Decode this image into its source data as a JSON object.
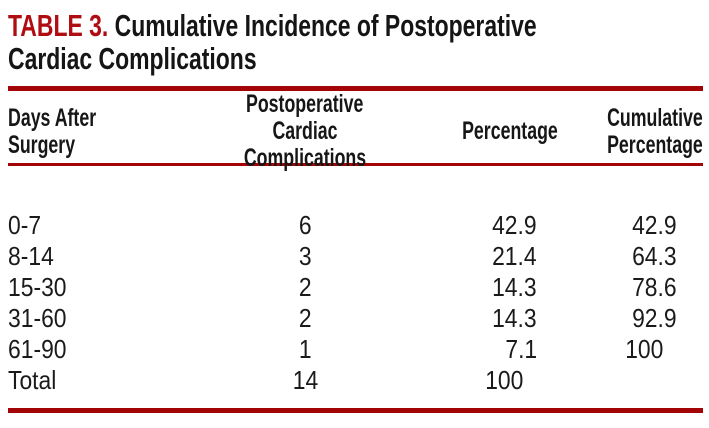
{
  "title": {
    "label": "TABLE 3.",
    "line1": "Cumulative Incidence of Postoperative",
    "line2": "Cardiac Complications"
  },
  "colors": {
    "accent_red_label": "#b00d12",
    "accent_red_rule": "#a30506",
    "text_black": "#1a1a1a",
    "background": "#ffffff"
  },
  "table": {
    "columns": [
      {
        "id": "days",
        "label_lines": [
          "Days After",
          "Surgery"
        ]
      },
      {
        "id": "complications",
        "label_lines": [
          "Postoperative",
          "Cardiac Complications"
        ]
      },
      {
        "id": "percentage",
        "label_lines": [
          "Percentage"
        ]
      },
      {
        "id": "cumulative",
        "label_lines": [
          "Cumulative",
          "Percentage"
        ]
      }
    ],
    "rows": [
      {
        "days": "0-7",
        "complications": "6",
        "percentage": "42.9",
        "cumulative": "42.9"
      },
      {
        "days": "8-14",
        "complications": "3",
        "percentage": "21.4",
        "cumulative": "64.3"
      },
      {
        "days": "15-30",
        "complications": "2",
        "percentage": "14.3",
        "cumulative": "78.6"
      },
      {
        "days": "31-60",
        "complications": "2",
        "percentage": "14.3",
        "cumulative": "92.9"
      },
      {
        "days": "61-90",
        "complications": "1",
        "percentage": "7.1",
        "cumulative": "100"
      },
      {
        "days": "Total",
        "complications": "14",
        "percentage": "100",
        "cumulative": ""
      }
    ]
  },
  "chart_data": {
    "type": "table",
    "title": "TABLE 3. Cumulative Incidence of Postoperative Cardiac Complications",
    "columns": [
      "Days After Surgery",
      "Postoperative Cardiac Complications",
      "Percentage",
      "Cumulative Percentage"
    ],
    "rows": [
      [
        "0-7",
        6,
        42.9,
        42.9
      ],
      [
        "8-14",
        3,
        21.4,
        64.3
      ],
      [
        "15-30",
        2,
        14.3,
        78.6
      ],
      [
        "31-60",
        2,
        14.3,
        92.9
      ],
      [
        "61-90",
        1,
        7.1,
        100
      ],
      [
        "Total",
        14,
        100,
        null
      ]
    ]
  }
}
